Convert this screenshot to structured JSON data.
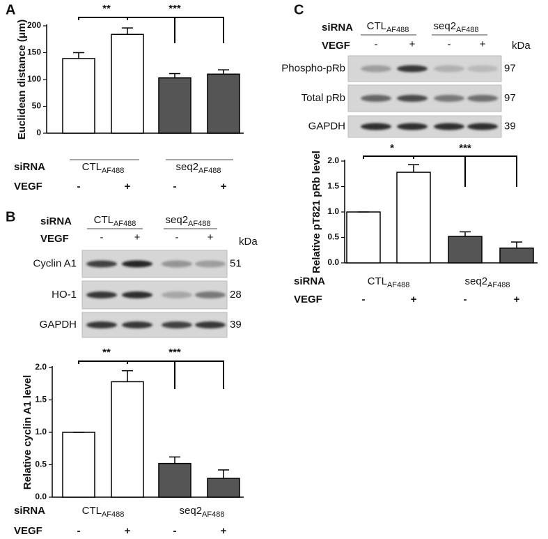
{
  "chart_data": [
    {
      "type": "bar",
      "panel": "A",
      "ylabel": "Euclidean distance (μm)",
      "ylim": [
        0,
        200
      ],
      "yticks": [
        0,
        50,
        100,
        150,
        200
      ],
      "group_label": "siRNA",
      "groups": [
        {
          "name": "CTL",
          "subscript": "AF488"
        },
        {
          "name": "seq2",
          "subscript": "AF488"
        }
      ],
      "category_label": "VEGF",
      "categories": [
        "-",
        "+",
        "-",
        "+"
      ],
      "values": [
        139,
        184,
        103,
        110
      ],
      "errors": [
        11,
        12,
        8,
        8
      ],
      "colors": [
        "#ffffff",
        "#ffffff",
        "#555555",
        "#555555"
      ],
      "annotations": [
        "**",
        "***"
      ]
    },
    {
      "type": "bar",
      "ylabel": "Relative cyclin A1 level",
      "ylim": [
        0,
        2
      ],
      "yticks": [
        {
          "value": 0,
          "label": "0.0"
        },
        {
          "value": 0.5,
          "label": "0.5"
        },
        {
          "value": 1,
          "label": "1.0"
        },
        {
          "value": 1.5,
          "label": "1.5"
        },
        {
          "value": 2,
          "label": "2.0"
        }
      ],
      "group_label": "siRNA",
      "groups": [
        {
          "name": "CTL",
          "subscript": "AF488"
        },
        {
          "name": "seq2",
          "subscript": "AF488"
        }
      ],
      "category_label": "VEGF",
      "categories": [
        "-",
        "+",
        "-",
        "+"
      ],
      "values": [
        1.0,
        1.78,
        0.52,
        0.29
      ],
      "errors": [
        0,
        0.17,
        0.1,
        0.13
      ],
      "colors": [
        "#ffffff",
        "#ffffff",
        "#555555",
        "#555555"
      ],
      "annotations": [
        "**",
        "***"
      ]
    },
    {
      "type": "bar",
      "ylabel": "Relative pT821 pRb level",
      "ylim": [
        0,
        2
      ],
      "yticks": [
        {
          "value": 0,
          "label": "0.0"
        },
        {
          "value": 0.5,
          "label": "0.5"
        },
        {
          "value": 1,
          "label": "1.0"
        },
        {
          "value": 1.5,
          "label": "1.5"
        },
        {
          "value": 2,
          "label": "2.0"
        }
      ],
      "group_label": "siRNA",
      "groups": [
        {
          "name": "CTL",
          "subscript": "AF488"
        },
        {
          "name": "seq2",
          "subscript": "AF488"
        }
      ],
      "category_label": "VEGF",
      "categories": [
        "-",
        "+",
        "-",
        "+"
      ],
      "values": [
        1.0,
        1.78,
        0.52,
        0.29
      ],
      "errors": [
        0,
        0.15,
        0.09,
        0.12
      ],
      "colors": [
        "#ffffff",
        "#ffffff",
        "#555555",
        "#555555"
      ],
      "annotations": [
        "*",
        "***"
      ]
    }
  ],
  "blots": [
    {
      "panel": "B",
      "group_label": "siRNA",
      "groups": [
        {
          "name": "CTL",
          "subscript": "AF488"
        },
        {
          "name": "seq2",
          "subscript": "AF488"
        }
      ],
      "category_label": "VEGF",
      "categories": [
        "-",
        "+",
        "-",
        "+"
      ],
      "unit": "kDa",
      "rows": [
        {
          "label": "Cyclin A1",
          "kda": 51
        },
        {
          "label": "HO-1",
          "kda": 28
        },
        {
          "label": "GAPDH",
          "kda": 39
        }
      ]
    },
    {
      "panel": "C",
      "group_label": "siRNA",
      "groups": [
        {
          "name": "CTL",
          "subscript": "AF488"
        },
        {
          "name": "seq2",
          "subscript": "AF488"
        }
      ],
      "category_label": "VEGF",
      "categories": [
        "-",
        "+",
        "-",
        "+"
      ],
      "unit": "kDa",
      "rows": [
        {
          "label": "Phospho-pRb",
          "kda": 97
        },
        {
          "label": "Total pRb",
          "kda": 97
        },
        {
          "label": "GAPDH",
          "kda": 39
        }
      ]
    }
  ]
}
